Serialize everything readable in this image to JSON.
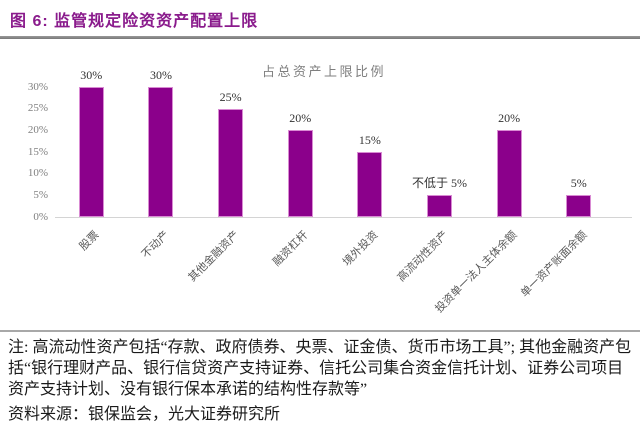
{
  "figure": {
    "title": "图 6:  监管规定险资资产配置上限"
  },
  "chart_data": {
    "type": "bar",
    "title": "占总资产上限比例",
    "categories": [
      "股票",
      "不动产",
      "其他金融资产",
      "融资杠杆",
      "境外投资",
      "高流动性资产",
      "投资单一法人主体余额",
      "单一资产账面余额"
    ],
    "values": [
      30,
      30,
      25,
      20,
      15,
      5,
      20,
      5
    ],
    "data_labels": [
      "30%",
      "30%",
      "25%",
      "20%",
      "15%",
      "不低于 5%",
      "20%",
      "5%"
    ],
    "y_ticks": [
      "0%",
      "5%",
      "10%",
      "15%",
      "20%",
      "25%",
      "30%"
    ],
    "ylim": [
      0,
      30
    ],
    "xlabel": "",
    "ylabel": "",
    "grid": false,
    "legend": "none",
    "bar_color": "#8B008B",
    "accent_color": "#8A1B8C"
  },
  "footer": {
    "note": "注: 高流动性资产包括“存款、政府债券、央票、证金债、货币市场工具”; 其他金融资产包括“银行理财产品、银行信贷资产支持证券、信托公司集合资金信托计划、证券公司项目资产支持计划、没有银行保本承诺的结构性存款等”",
    "source": "资料来源：银保监会，光大证券研究所"
  }
}
